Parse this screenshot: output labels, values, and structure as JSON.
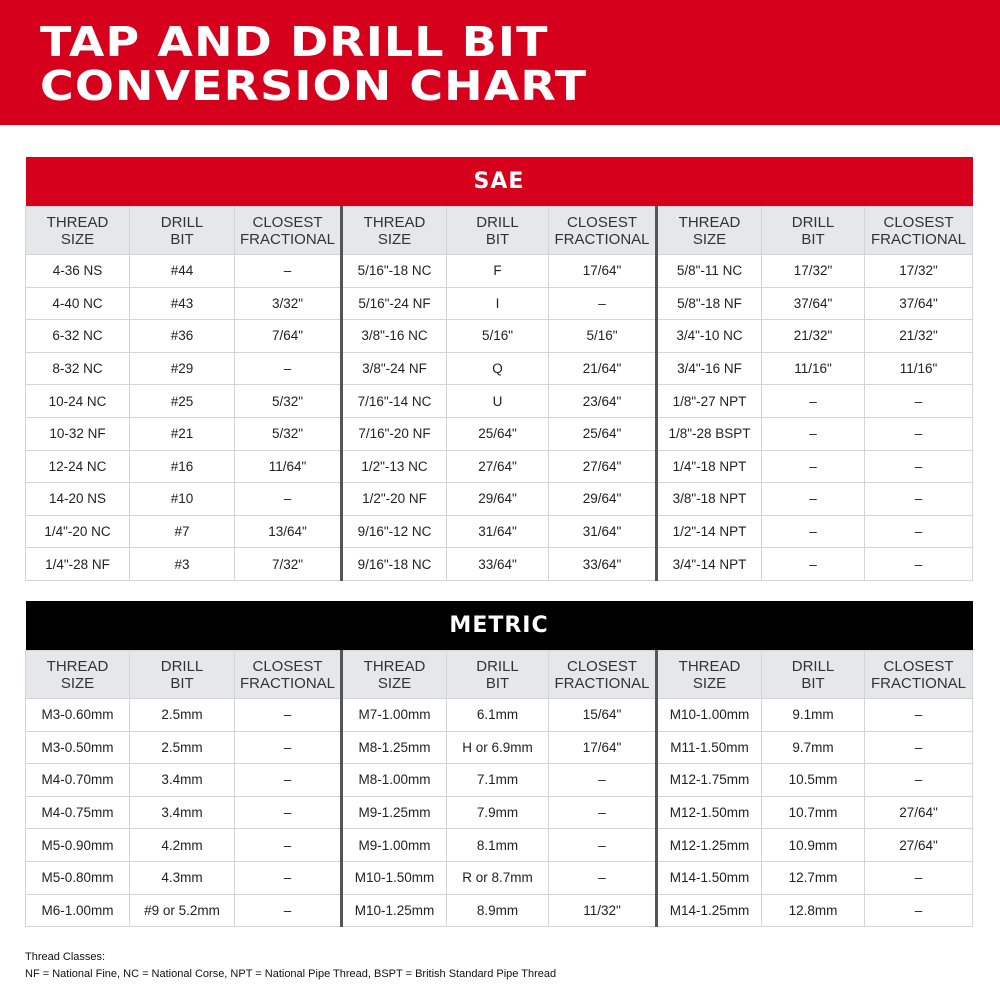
{
  "header": {
    "title_line1": "TAP AND DRILL BIT",
    "title_line2": "CONVERSION CHART"
  },
  "colors": {
    "brand_red": "#d7001c",
    "metric_bar": "#000000",
    "header_gray": "#e6e7e8"
  },
  "column_headers": [
    [
      "THREAD",
      "SIZE"
    ],
    [
      "DRILL",
      "BIT"
    ],
    [
      "CLOSEST",
      "FRACTIONAL"
    ],
    [
      "THREAD",
      "SIZE"
    ],
    [
      "DRILL",
      "BIT"
    ],
    [
      "CLOSEST",
      "FRACTIONAL"
    ],
    [
      "THREAD",
      "SIZE"
    ],
    [
      "DRILL",
      "BIT"
    ],
    [
      "CLOSEST",
      "FRACTIONAL"
    ]
  ],
  "sae": {
    "title": "SAE",
    "rows": [
      [
        "4-36 NS",
        "#44",
        "–",
        "5/16\"-18 NC",
        "F",
        "17/64\"",
        "5/8\"-11 NC",
        "17/32\"",
        "17/32\""
      ],
      [
        "4-40 NC",
        "#43",
        "3/32\"",
        "5/16\"-24 NF",
        "I",
        "–",
        "5/8\"-18 NF",
        "37/64\"",
        "37/64\""
      ],
      [
        "6-32 NC",
        "#36",
        "7/64\"",
        "3/8\"-16 NC",
        "5/16\"",
        "5/16\"",
        "3/4\"-10 NC",
        "21/32\"",
        "21/32\""
      ],
      [
        "8-32 NC",
        "#29",
        "–",
        "3/8\"-24 NF",
        "Q",
        "21/64\"",
        "3/4\"-16 NF",
        "11/16\"",
        "11/16\""
      ],
      [
        "10-24 NC",
        "#25",
        "5/32\"",
        "7/16\"-14 NC",
        "U",
        "23/64\"",
        "1/8\"-27 NPT",
        "–",
        "–"
      ],
      [
        "10-32 NF",
        "#21",
        "5/32\"",
        "7/16\"-20 NF",
        "25/64\"",
        "25/64\"",
        "1/8\"-28 BSPT",
        "–",
        "–"
      ],
      [
        "12-24 NC",
        "#16",
        "11/64\"",
        "1/2\"-13 NC",
        "27/64\"",
        "27/64\"",
        "1/4\"-18 NPT",
        "–",
        "–"
      ],
      [
        "14-20 NS",
        "#10",
        "–",
        "1/2\"-20 NF",
        "29/64\"",
        "29/64\"",
        "3/8\"-18 NPT",
        "–",
        "–"
      ],
      [
        "1/4\"-20 NC",
        "#7",
        "13/64\"",
        "9/16\"-12 NC",
        "31/64\"",
        "31/64\"",
        "1/2\"-14 NPT",
        "–",
        "–"
      ],
      [
        "1/4\"-28 NF",
        "#3",
        "7/32\"",
        "9/16\"-18 NC",
        "33/64\"",
        "33/64\"",
        "3/4\"-14 NPT",
        "–",
        "–"
      ]
    ]
  },
  "metric": {
    "title": "METRIC",
    "rows": [
      [
        "M3-0.60mm",
        "2.5mm",
        "–",
        "M7-1.00mm",
        "6.1mm",
        "15/64\"",
        "M10-1.00mm",
        "9.1mm",
        "–"
      ],
      [
        "M3-0.50mm",
        "2.5mm",
        "–",
        "M8-1.25mm",
        "H or 6.9mm",
        "17/64\"",
        "M11-1.50mm",
        "9.7mm",
        "–"
      ],
      [
        "M4-0.70mm",
        "3.4mm",
        "–",
        "M8-1.00mm",
        "7.1mm",
        "–",
        "M12-1.75mm",
        "10.5mm",
        "–"
      ],
      [
        "M4-0.75mm",
        "3.4mm",
        "–",
        "M9-1.25mm",
        "7.9mm",
        "–",
        "M12-1.50mm",
        "10.7mm",
        "27/64\""
      ],
      [
        "M5-0.90mm",
        "4.2mm",
        "–",
        "M9-1.00mm",
        "8.1mm",
        "–",
        "M12-1.25mm",
        "10.9mm",
        "27/64\""
      ],
      [
        "M5-0.80mm",
        "4.3mm",
        "–",
        "M10-1.50mm",
        "R or 8.7mm",
        "–",
        "M14-1.50mm",
        "12.7mm",
        "–"
      ],
      [
        "M6-1.00mm",
        "#9 or 5.2mm",
        "–",
        "M10-1.25mm",
        "8.9mm",
        "11/32\"",
        "M14-1.25mm",
        "12.8mm",
        "–"
      ]
    ]
  },
  "footer": {
    "heading": "Thread Classes:",
    "legend": "NF = National Fine, NC = National Corse, NPT = National Pipe Thread, BSPT = British Standard Pipe Thread"
  }
}
